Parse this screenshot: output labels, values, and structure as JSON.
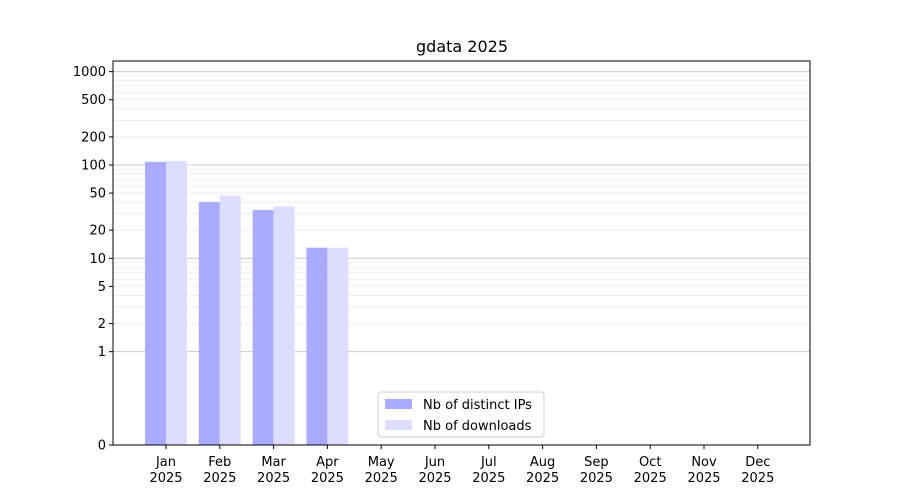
{
  "chart_data": {
    "type": "bar",
    "title": "gdata 2025",
    "categories": [
      "Jan\n2025",
      "Feb\n2025",
      "Mar\n2025",
      "Apr\n2025",
      "May\n2025",
      "Jun\n2025",
      "Jul\n2025",
      "Aug\n2025",
      "Sep\n2025",
      "Oct\n2025",
      "Nov\n2025",
      "Dec\n2025"
    ],
    "series": [
      {
        "name": "Nb of distinct IPs",
        "color": "#aaaaff",
        "values": [
          108,
          40,
          33,
          13,
          0,
          0,
          0,
          0,
          0,
          0,
          0,
          0
        ]
      },
      {
        "name": "Nb of downloads",
        "color": "#ddddff",
        "values": [
          110,
          47,
          36,
          13,
          0,
          0,
          0,
          0,
          0,
          0,
          0,
          0
        ]
      }
    ],
    "y_scale": "symlog",
    "y_ticks": [
      0,
      1,
      2,
      5,
      10,
      20,
      50,
      100,
      200,
      500,
      1000
    ],
    "y_tick_labels": [
      "0",
      "1",
      "2",
      "5",
      "10",
      "20",
      "50",
      "100",
      "200",
      "500",
      "1000"
    ],
    "ylim": [
      0,
      1300
    ],
    "grid": "horizontal",
    "legend_position": "bottom-center",
    "xlabel": "",
    "ylabel": ""
  }
}
